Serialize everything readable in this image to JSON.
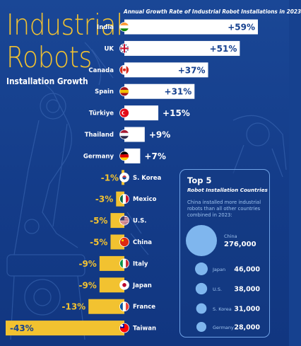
{
  "header": {
    "title_line1": "Industrial",
    "title_line2": "Robots",
    "subtitle": "Installation Growth"
  },
  "colors": {
    "background": "#16418f",
    "positive_bar": "#ffffff",
    "negative_bar": "#f2c230",
    "accent": "#f2c230",
    "panel_bubble": "#7fb6ee"
  },
  "chart_data": [
    {
      "type": "bar",
      "orientation": "horizontal",
      "title": "Annual Growth Rate of Industrial Robot Installations in 2023",
      "unit": "%",
      "categories": [
        "India",
        "UK",
        "Canada",
        "Spain",
        "Türkiye",
        "Thailand",
        "Germany",
        "S. Korea",
        "Mexico",
        "U.S.",
        "China",
        "Italy",
        "Japan",
        "France",
        "Taiwan"
      ],
      "values": [
        59,
        51,
        37,
        31,
        15,
        9,
        7,
        -1,
        -3,
        -5,
        -5,
        -9,
        -9,
        -13,
        -43
      ],
      "value_labels": [
        "+59%",
        "+51%",
        "+37%",
        "+31%",
        "+15%",
        "+9%",
        "+7%",
        "-1%",
        "-3%",
        "-5%",
        "-5%",
        "-9%",
        "-9%",
        "-13%",
        "-43%"
      ],
      "flag_icons": [
        "india-flag-icon",
        "uk-flag-icon",
        "canada-flag-icon",
        "spain-flag-icon",
        "turkiye-flag-icon",
        "thailand-flag-icon",
        "germany-flag-icon",
        "south-korea-flag-icon",
        "mexico-flag-icon",
        "us-flag-icon",
        "china-flag-icon",
        "italy-flag-icon",
        "japan-flag-icon",
        "france-flag-icon",
        "taiwan-flag-icon"
      ],
      "xlim": [
        -43,
        59
      ],
      "grid": false,
      "legend": "none"
    },
    {
      "type": "bubble",
      "title": "Top 5",
      "subtitle": "Robot Installation Countries",
      "note": "China installed more industrial robots than all other countries combined in 2023:",
      "categories": [
        "China",
        "Japan",
        "U.S.",
        "S. Korea",
        "Germany"
      ],
      "values": [
        276000,
        46000,
        38000,
        31000,
        28000
      ],
      "value_labels": [
        "276,000",
        "46,000",
        "38,000",
        "31,000",
        "28,000"
      ]
    }
  ]
}
